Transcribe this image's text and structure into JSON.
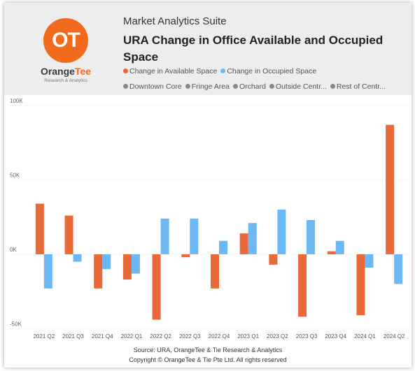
{
  "header": {
    "app_title": "Market Analytics Suite",
    "chart_title": "URA Change in Office Available and Occupied Space"
  },
  "logo": {
    "mark": "OT",
    "name_part1": "Orange",
    "name_part2": "Tee",
    "tagline": "Research & Analytics",
    "color": "#f26a1b"
  },
  "legend": {
    "series": [
      {
        "label": "Change in Available Space",
        "color": "#e8693a"
      },
      {
        "label": "Change in Occupied Space",
        "color": "#6bb8f5"
      }
    ],
    "regions": [
      {
        "label": "Downtown Core",
        "color": "#8a8a8a"
      },
      {
        "label": "Fringe Area",
        "color": "#8a8a8a"
      },
      {
        "label": "Orchard",
        "color": "#8a8a8a"
      },
      {
        "label": "Outside Centr...",
        "color": "#8a8a8a"
      },
      {
        "label": "Rest of Centr...",
        "color": "#8a8a8a"
      }
    ]
  },
  "chart_data": {
    "type": "bar",
    "title": "URA Change in Office Available and Occupied Space",
    "categories": [
      "2021 Q2",
      "2021 Q3",
      "2021 Q4",
      "2022 Q1",
      "2022 Q2",
      "2022 Q3",
      "2022 Q4",
      "2023 Q1",
      "2023 Q2",
      "2023 Q3",
      "2023 Q4",
      "2024 Q1",
      "2024 Q2"
    ],
    "series": [
      {
        "name": "Change in Available Space",
        "color": "#e8693a",
        "values": [
          34000,
          26000,
          -23000,
          -17000,
          -44000,
          -2000,
          -23000,
          14000,
          -7000,
          -42000,
          2000,
          -41000,
          87000
        ]
      },
      {
        "name": "Change in Occupied Space",
        "color": "#6bb8f5",
        "values": [
          -23000,
          -5000,
          -10000,
          -13000,
          24000,
          24000,
          9000,
          21000,
          30000,
          23000,
          9000,
          -9000,
          -20000
        ]
      }
    ],
    "yticks": [
      100000,
      50000,
      0,
      -50000
    ],
    "ytick_labels": [
      "100K",
      "50K",
      "0K",
      "-50K"
    ],
    "ylim": [
      -55000,
      100000
    ],
    "grid": true,
    "legend": "top"
  },
  "footer": {
    "source": "Source: URA, OrangeTee & Tie Research & Analytics",
    "copyright": "Copyright © OrangeTee & Tie Pte Ltd. All rights reserved"
  }
}
